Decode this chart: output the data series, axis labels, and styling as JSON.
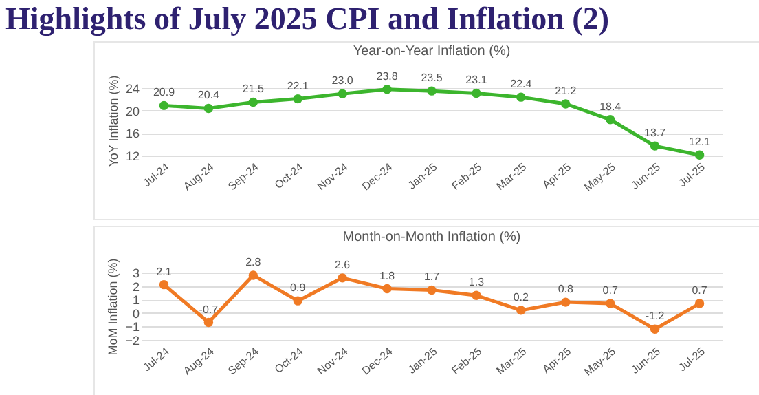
{
  "chart_data": [
    {
      "type": "other",
      "title": "Highlights of July 2025 CPI and Inflation (2)"
    },
    {
      "type": "line",
      "title": "Year-on-Year Inflation (%)",
      "ylabel": "YoY Inflation (%)",
      "categories": [
        "Jul-24",
        "Aug-24",
        "Sep-24",
        "Oct-24",
        "Nov-24",
        "Dec-24",
        "Jan-25",
        "Feb-25",
        "Mar-25",
        "Apr-25",
        "May-25",
        "Jun-25",
        "Jul-25"
      ],
      "series": [
        {
          "color": "#3cb52d",
          "values": [
            20.9,
            20.4,
            21.5,
            22.1,
            23.0,
            23.8,
            23.5,
            23.1,
            22.4,
            21.2,
            18.4,
            13.7,
            12.1
          ]
        }
      ],
      "value_labels": [
        "20.9",
        "20.4",
        "21.5",
        "22.1",
        "23.0",
        "23.8",
        "23.5",
        "23.1",
        "22.4",
        "21.2",
        "18.4",
        "13.7",
        "12.1"
      ],
      "ylim": [
        12,
        24.5
      ],
      "yticks": [
        12,
        16,
        20,
        24
      ],
      "grid": "y",
      "marker": "circle",
      "legend": false
    },
    {
      "type": "line",
      "title": "Month-on-Month Inflation (%)",
      "ylabel": "MoM Inflation (%)",
      "categories": [
        "Jul-24",
        "Aug-24",
        "Sep-24",
        "Oct-24",
        "Nov-24",
        "Dec-24",
        "Jan-25",
        "Feb-25",
        "Mar-25",
        "Apr-25",
        "May-25",
        "Jun-25",
        "Jul-25"
      ],
      "series": [
        {
          "color": "#f07a24",
          "values": [
            2.1,
            -0.7,
            2.8,
            0.9,
            2.6,
            1.8,
            1.7,
            1.3,
            0.2,
            0.8,
            0.7,
            -1.2,
            0.7
          ]
        }
      ],
      "data_labels": true,
      "ylim": [
        -2,
        3
      ],
      "yticks": [
        -2,
        -1,
        0,
        1,
        2,
        3
      ],
      "grid": "y",
      "marker": "circle",
      "legend": false
    }
  ]
}
